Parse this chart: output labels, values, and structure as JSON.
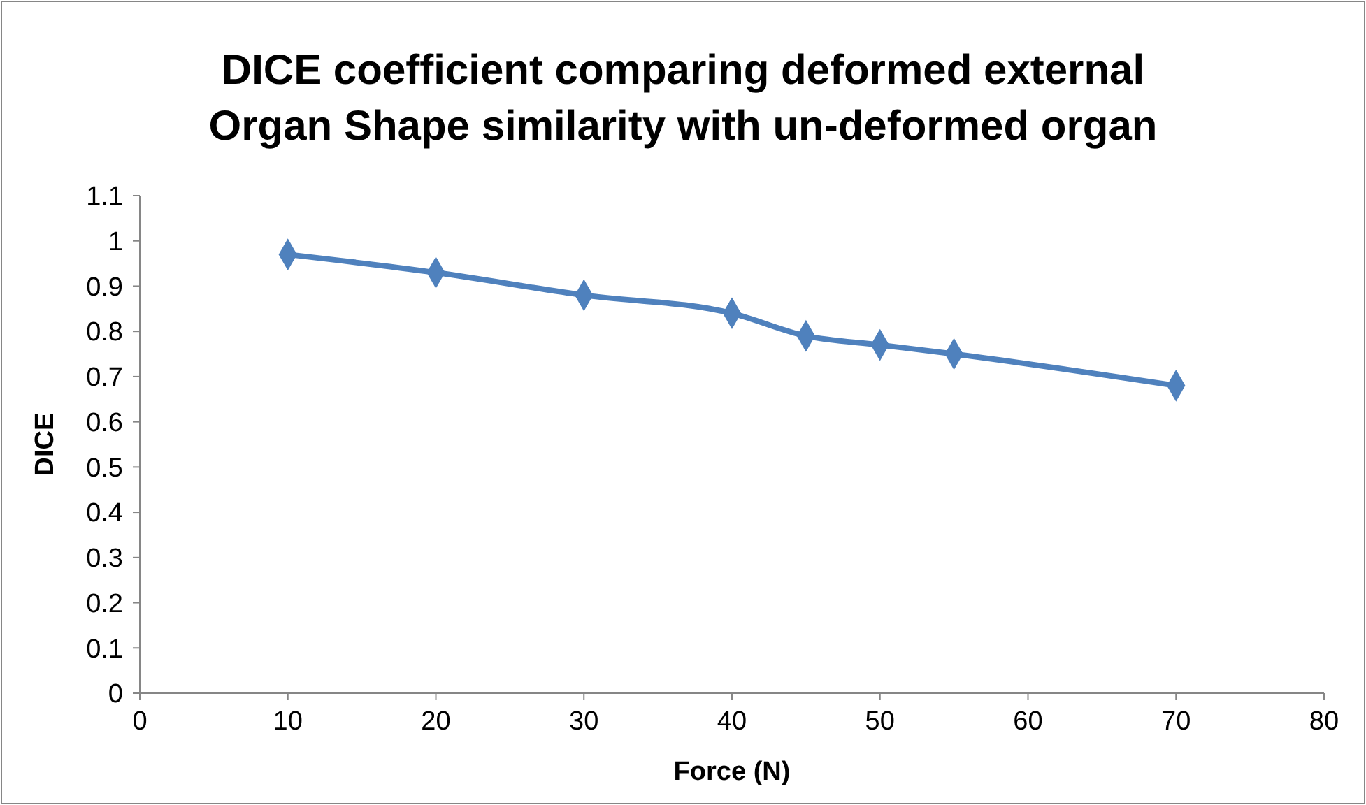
{
  "chart_data": {
    "type": "line",
    "title": "DICE coefficient comparing deformed external Organ Shape similarity with un-deformed organ",
    "xlabel": "Force (N)",
    "ylabel": "DICE",
    "x": [
      10,
      20,
      30,
      40,
      45,
      50,
      55,
      70
    ],
    "series": [
      {
        "color": "#4f81bd",
        "values": [
          0.97,
          0.93,
          0.88,
          0.84,
          0.79,
          0.77,
          0.75,
          0.68
        ]
      }
    ],
    "xlim": [
      0,
      80
    ],
    "xticks": [
      0,
      10,
      20,
      30,
      40,
      50,
      60,
      70,
      80
    ],
    "ylim": [
      0,
      1.1
    ],
    "yticks": [
      0,
      0.1,
      0.2,
      0.3,
      0.4,
      0.5,
      0.6,
      0.7,
      0.8,
      0.9,
      1,
      1.1
    ],
    "marker": "diamond",
    "line_style": "solid"
  }
}
